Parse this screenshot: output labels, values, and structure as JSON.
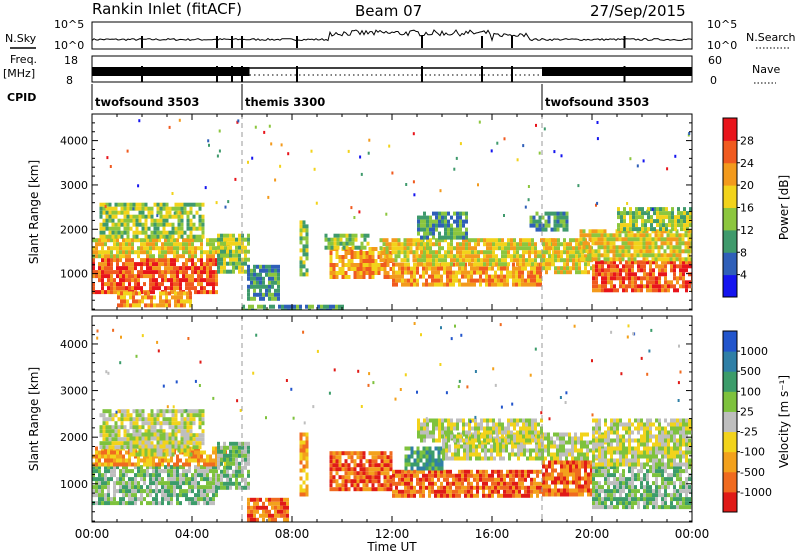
{
  "header": {
    "title": "Rankin Inlet (fitACF)",
    "beam": "Beam 07",
    "date": "27/Sep/2015"
  },
  "strip_labels": {
    "nsky": "N.Sky",
    "nsearch": "N.Search",
    "freq": "Freq.",
    "freq_unit": "[MHz]",
    "nave": "Nave",
    "cpid": "CPID",
    "nsky_ticks": [
      "10^5",
      "10^0"
    ],
    "nsearch_ticks": [
      "10^5",
      "10^0"
    ],
    "freq_ticks": [
      "18",
      "8"
    ],
    "nave_ticks": [
      "60",
      "0"
    ]
  },
  "cpid_segments": [
    {
      "label": "twofsound 3503",
      "start_h": 0,
      "end_h": 6
    },
    {
      "label": "themis 3300",
      "start_h": 6,
      "end_h": 18
    },
    {
      "label": "twofsound 3503",
      "start_h": 18,
      "end_h": 24
    }
  ],
  "colors": {
    "power_scale": [
      "#1515ef",
      "#2f5fb8",
      "#3f9a6c",
      "#8cc63e",
      "#f2d31b",
      "#f39a1c",
      "#f05a1f",
      "#e8141b"
    ],
    "velocity_scale": [
      "#2255cc",
      "#2f7fa6",
      "#3c9c6a",
      "#7ec23d",
      "#bebebe",
      "#f2d31b",
      "#f3a11c",
      "#f06a1f",
      "#e01a17"
    ],
    "ground_scatter": "#bebebe"
  },
  "chart_data": [
    {
      "type": "heatmap",
      "title": "",
      "xlabel": "Time UT",
      "ylabel": "Slant Range [km]",
      "xlim": [
        0,
        24
      ],
      "ylim": [
        180,
        4600
      ],
      "x_ticks": [
        "00:00",
        "04:00",
        "08:00",
        "12:00",
        "16:00",
        "20:00",
        "00:00"
      ],
      "y_ticks": [
        1000,
        2000,
        3000,
        4000
      ],
      "colorbar": {
        "label": "Power [dB]",
        "min": 0,
        "max": 32,
        "ticks": [
          4,
          8,
          12,
          16,
          20,
          24,
          28
        ]
      },
      "bands": [
        {
          "t0": 0.0,
          "t1": 5.0,
          "r0": 600,
          "r1": 1350,
          "value": 25
        },
        {
          "t0": 0.0,
          "t1": 5.5,
          "r0": 1350,
          "r1": 1800,
          "value": 17
        },
        {
          "t0": 0.3,
          "t1": 4.5,
          "r0": 1800,
          "r1": 2600,
          "value": 13
        },
        {
          "t0": 1.0,
          "t1": 4.0,
          "r0": 300,
          "r1": 600,
          "value": 22
        },
        {
          "t0": 5.0,
          "t1": 6.2,
          "r0": 1000,
          "r1": 1900,
          "value": 12
        },
        {
          "t0": 6.2,
          "t1": 7.5,
          "r0": 400,
          "r1": 1200,
          "value": 11
        },
        {
          "t0": 6.0,
          "t1": 10.0,
          "r0": 200,
          "r1": 300,
          "value": 9
        },
        {
          "t0": 8.3,
          "t1": 8.6,
          "r0": 1000,
          "r1": 2200,
          "value": 14
        },
        {
          "t0": 9.5,
          "t1": 12.0,
          "r0": 900,
          "r1": 1600,
          "value": 21
        },
        {
          "t0": 9.3,
          "t1": 11.0,
          "r0": 1600,
          "r1": 1900,
          "value": 12
        },
        {
          "t0": 11.5,
          "t1": 13.5,
          "r0": 1300,
          "r1": 1800,
          "value": 18
        },
        {
          "t0": 12.0,
          "t1": 18.0,
          "r0": 750,
          "r1": 1250,
          "value": 22
        },
        {
          "t0": 13.0,
          "t1": 18.5,
          "r0": 1250,
          "r1": 1800,
          "value": 19
        },
        {
          "t0": 13.0,
          "t1": 15.0,
          "r0": 1800,
          "r1": 2400,
          "value": 10
        },
        {
          "t0": 17.5,
          "t1": 19.0,
          "r0": 2000,
          "r1": 2400,
          "value": 11
        },
        {
          "t0": 18.0,
          "t1": 20.0,
          "r0": 1000,
          "r1": 1800,
          "value": 18
        },
        {
          "t0": 20.0,
          "t1": 24.0,
          "r0": 600,
          "r1": 1300,
          "value": 26
        },
        {
          "t0": 19.5,
          "t1": 24.0,
          "r0": 1300,
          "r1": 2000,
          "value": 16
        },
        {
          "t0": 21.0,
          "t1": 24.0,
          "r0": 2000,
          "r1": 2500,
          "value": 13
        }
      ]
    },
    {
      "type": "heatmap",
      "title": "",
      "xlabel": "Time UT",
      "ylabel": "Slant Range [km]",
      "xlim": [
        0,
        24
      ],
      "ylim": [
        180,
        4600
      ],
      "x_ticks": [
        "00:00",
        "04:00",
        "08:00",
        "12:00",
        "16:00",
        "20:00",
        "00:00"
      ],
      "y_ticks": [
        1000,
        2000,
        3000,
        4000
      ],
      "colorbar": {
        "label": "Velocity [m s⁻¹]",
        "tick_labels": [
          "1000",
          "500",
          "100",
          "25",
          "-25",
          "-100",
          "-500",
          "-1000"
        ]
      },
      "bands": [
        {
          "t0": 0.0,
          "t1": 5.0,
          "r0": 600,
          "r1": 1400,
          "value": 3
        },
        {
          "t0": 0.0,
          "t1": 5.5,
          "r0": 1400,
          "r1": 1800,
          "value": 6
        },
        {
          "t0": 0.3,
          "t1": 4.5,
          "r0": 1800,
          "r1": 2600,
          "value": 4
        },
        {
          "t0": 1.5,
          "t1": 4.0,
          "r0": 1600,
          "r1": 2100,
          "value": 4
        },
        {
          "t0": 5.0,
          "t1": 6.2,
          "r0": 900,
          "r1": 1900,
          "value": 3
        },
        {
          "t0": 6.2,
          "t1": 7.8,
          "r0": 250,
          "r1": 700,
          "value": 7
        },
        {
          "t0": 8.3,
          "t1": 8.6,
          "r0": 800,
          "r1": 2100,
          "value": 6
        },
        {
          "t0": 9.5,
          "t1": 12.0,
          "r0": 900,
          "r1": 1700,
          "value": 7
        },
        {
          "t0": 12.0,
          "t1": 18.0,
          "r0": 750,
          "r1": 1300,
          "value": 7
        },
        {
          "t0": 12.5,
          "t1": 14.0,
          "r0": 1300,
          "r1": 1800,
          "value": 2
        },
        {
          "t0": 14.0,
          "t1": 20.5,
          "r0": 1500,
          "r1": 2100,
          "value": 4
        },
        {
          "t0": 13.0,
          "t1": 18.0,
          "r0": 1900,
          "r1": 2400,
          "value": 4
        },
        {
          "t0": 18.0,
          "t1": 20.0,
          "r0": 800,
          "r1": 1500,
          "value": 7
        },
        {
          "t0": 20.0,
          "t1": 24.0,
          "r0": 500,
          "r1": 1400,
          "value": 3
        },
        {
          "t0": 20.0,
          "t1": 24.0,
          "r0": 1400,
          "r1": 2400,
          "value": 4
        }
      ]
    }
  ]
}
